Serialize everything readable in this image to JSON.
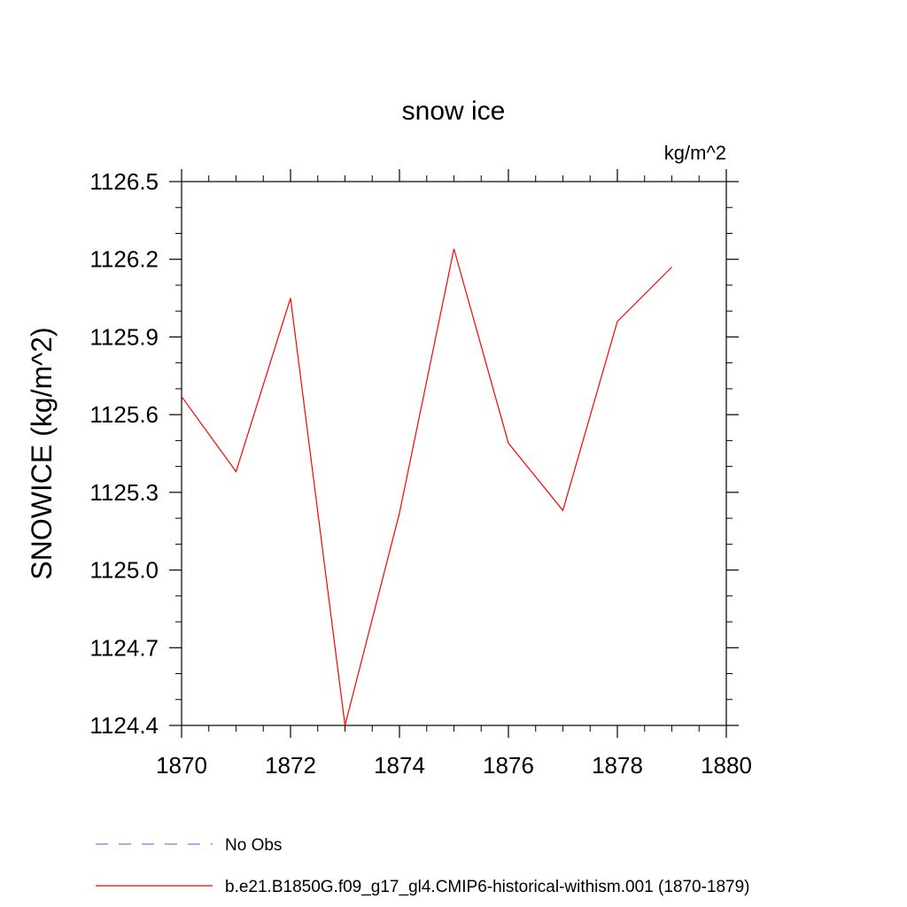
{
  "chart_data": {
    "type": "line",
    "title": "snow ice",
    "units_label": "kg/m^2",
    "ylabel": "SNOWICE  (kg/m^2)",
    "xlabel": "",
    "xlim": [
      1870,
      1880
    ],
    "ylim": [
      1124.4,
      1126.5
    ],
    "x_ticks": [
      "1870",
      "1872",
      "1874",
      "1876",
      "1878",
      "1880"
    ],
    "y_ticks": [
      "1124.4",
      "1124.7",
      "1125.0",
      "1125.3",
      "1125.6",
      "1125.9",
      "1126.2",
      "1126.5"
    ],
    "grid": false,
    "legend_position": "bottom",
    "series": [
      {
        "name": "No Obs",
        "color": "#8877cc",
        "dash": "dashed",
        "x": [],
        "y": []
      },
      {
        "name": "b.e21.B1850G.f09_g17_gl4.CMIP6-historical-withism.001 (1870-1879)",
        "color": "#ff0000",
        "dash": "solid",
        "x": [
          1870,
          1871,
          1872,
          1873,
          1874,
          1875,
          1876,
          1877,
          1878,
          1879
        ],
        "y": [
          1125.67,
          1125.38,
          1126.05,
          1124.4,
          1125.22,
          1126.24,
          1125.49,
          1125.23,
          1125.96,
          1126.17
        ]
      }
    ]
  }
}
